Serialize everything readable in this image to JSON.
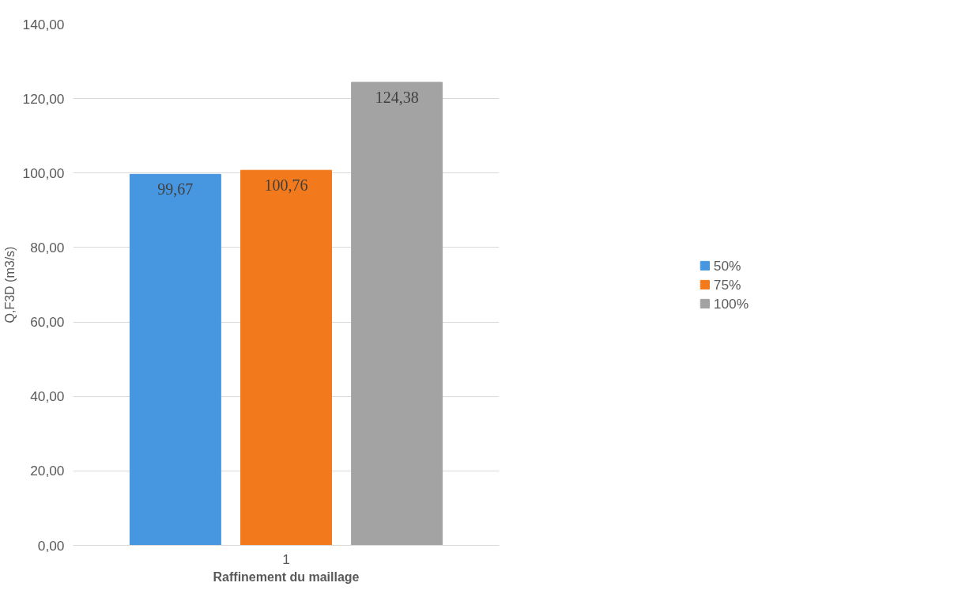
{
  "chart_data": {
    "type": "bar",
    "xlabel": "Raffinement du maillage",
    "ylabel": "Q,F3D (m3/s)",
    "categories": [
      "1"
    ],
    "series": [
      {
        "name": "50%",
        "color": "#4796e0",
        "values": [
          99.67
        ],
        "value_labels": [
          "99,67"
        ]
      },
      {
        "name": "75%",
        "color": "#f27a1c",
        "values": [
          100.76
        ],
        "value_labels": [
          "100,76"
        ]
      },
      {
        "name": "100%",
        "color": "#a3a3a3",
        "values": [
          124.38
        ],
        "value_labels": [
          "124,38"
        ]
      }
    ],
    "ylim": [
      0,
      140
    ],
    "yticks": [
      {
        "value": 0,
        "label": "0,00"
      },
      {
        "value": 20,
        "label": "20,00"
      },
      {
        "value": 40,
        "label": "40,00"
      },
      {
        "value": 60,
        "label": "60,00"
      },
      {
        "value": 80,
        "label": "80,00"
      },
      {
        "value": 100,
        "label": "100,00"
      },
      {
        "value": 120,
        "label": "120,00"
      },
      {
        "value": 140,
        "label": "140,00"
      }
    ],
    "grid": "y",
    "legend": "right"
  }
}
